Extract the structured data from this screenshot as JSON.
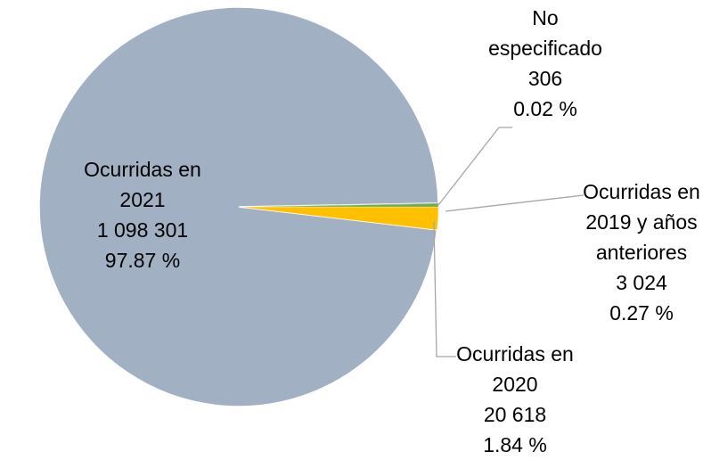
{
  "chart_data": {
    "type": "pie",
    "categories": [
      "Ocurridas en 2021",
      "Ocurridas en 2020",
      "Ocurridas en 2019 y años anteriores",
      "No especificado"
    ],
    "values": [
      1098301,
      20618,
      3024,
      306
    ],
    "value_labels": [
      "1 098 301",
      "20 618",
      "3 024",
      "306"
    ],
    "percentages": [
      97.87,
      1.84,
      0.27,
      0.02
    ],
    "percentage_labels": [
      "97.87 %",
      "1.84 %",
      "0.27 %",
      "0.02 %"
    ],
    "colors": [
      "#a2b0c4",
      "#ffc000",
      "#70ad47",
      "#000000"
    ]
  }
}
